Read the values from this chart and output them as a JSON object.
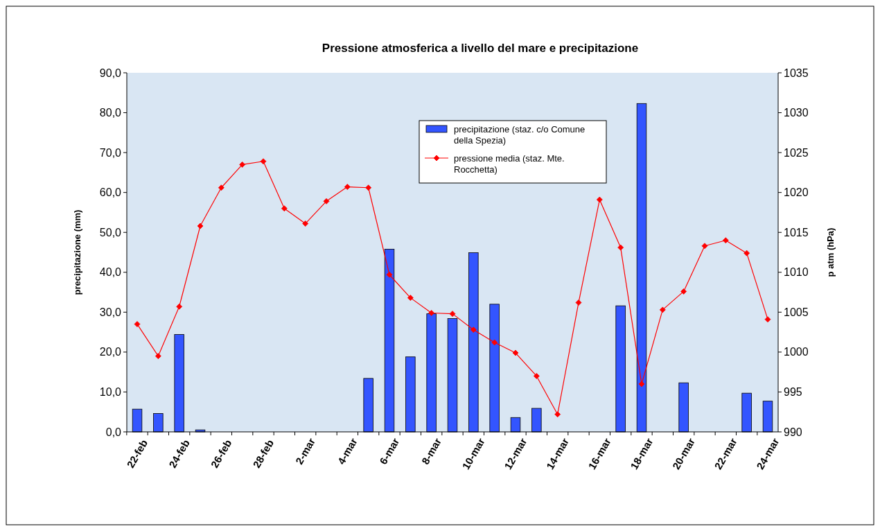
{
  "chart_data": {
    "type": "bar",
    "title": "Pressione atmosferica a livello del mare e precipitazione",
    "ylabel": "precipitazione (mm)",
    "y2label": "p atm (hPa)",
    "categories": [
      "22-feb",
      null,
      "24-feb",
      null,
      "26-feb",
      null,
      "28-feb",
      null,
      "2-mar",
      null,
      "4-mar",
      null,
      "6-mar",
      null,
      "8-mar",
      null,
      "10-mar",
      null,
      "12-mar",
      null,
      "14-mar",
      null,
      "16-mar",
      null,
      "18-mar",
      null,
      "20-mar",
      null,
      "22-mar",
      null,
      "24-mar"
    ],
    "series": [
      {
        "name": "precipitazione (staz. c/o Comune della Spezia)",
        "color": "#3355ff",
        "values": [
          5.7,
          4.6,
          24.4,
          0.5,
          0,
          0,
          0,
          0,
          0,
          0,
          0,
          13.4,
          45.8,
          18.8,
          29.6,
          28.4,
          44.9,
          32.0,
          3.6,
          5.9,
          0,
          0,
          0,
          31.6,
          82.3,
          0,
          12.3,
          0,
          0,
          9.7,
          7.7
        ]
      },
      {
        "name": "pressione media (staz. Mte. Rocchetta)",
        "type": "line",
        "axis": "y2",
        "color": "#ff0000",
        "marker": "diamond",
        "values": [
          1003.5,
          999.5,
          1005.7,
          1015.8,
          1020.6,
          1023.5,
          1023.9,
          1018,
          1016.1,
          1018.9,
          1020.7,
          1020.6,
          1009.7,
          1006.8,
          1004.9,
          1004.8,
          1002.8,
          1001.2,
          999.9,
          997,
          992.2,
          1006.2,
          1019.1,
          1013.1,
          996,
          1005.3,
          1007.6,
          1013.3,
          1014,
          1012.4,
          1004.1
        ]
      }
    ],
    "ylim": [
      0,
      90
    ],
    "yticks": [
      {
        "value": 0,
        "label": "0,0"
      },
      {
        "value": 10,
        "label": "10,0"
      },
      {
        "value": 20,
        "label": "20,0"
      },
      {
        "value": 30,
        "label": "30,0"
      },
      {
        "value": 40,
        "label": "40,0"
      },
      {
        "value": 50,
        "label": "50,0"
      },
      {
        "value": 60,
        "label": "60,0"
      },
      {
        "value": 70,
        "label": "70,0"
      },
      {
        "value": 80,
        "label": "80,0"
      },
      {
        "value": 90,
        "label": "90,0"
      }
    ],
    "y2lim": [
      990,
      1035
    ],
    "y2ticks": [
      990,
      995,
      1000,
      1005,
      1010,
      1015,
      1020,
      1025,
      1030,
      1035
    ],
    "legend": "top"
  }
}
